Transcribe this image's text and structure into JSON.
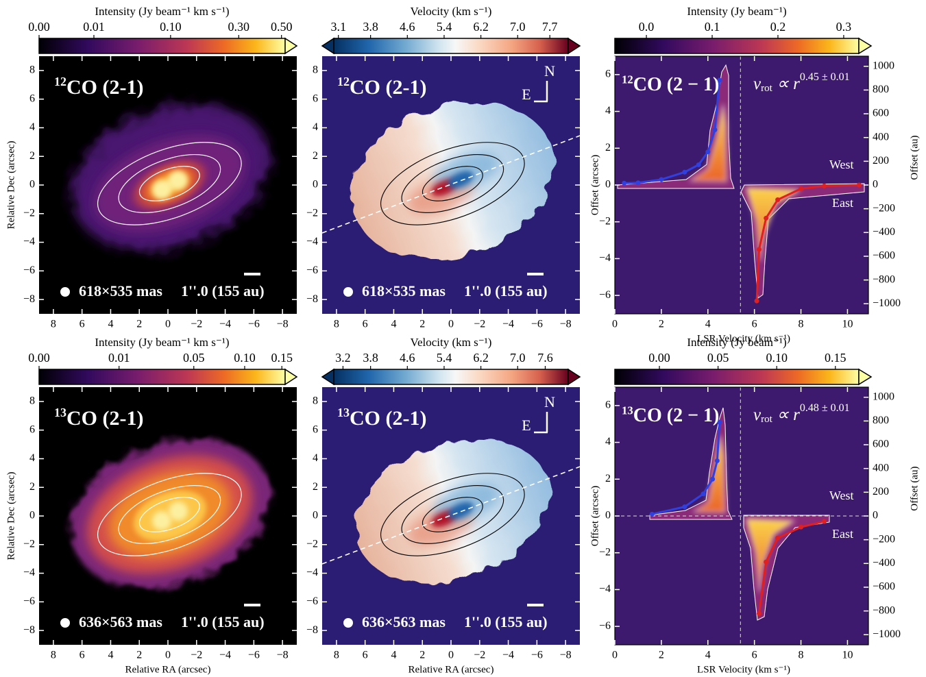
{
  "chart_data": [
    {
      "type": "intensity_map",
      "panel_label": {
        "sup": "12",
        "text": "CO (2-1)"
      },
      "colorbar": {
        "label": "Intensity (Jy beam⁻¹ km s⁻¹)",
        "cmap": "inferno",
        "scale": "power",
        "gamma": 0.38,
        "clim": [
          0,
          0.52
        ],
        "extend": "max",
        "ticks": [
          {
            "value": 0,
            "label": "0.00"
          },
          0.01,
          {
            "value": 0.1,
            "label": "0.10"
          },
          {
            "value": 0.3,
            "label": "0.30"
          },
          {
            "value": 0.5,
            "label": "0.50"
          }
        ]
      },
      "ylabel": "Relative Dec (arcsec)",
      "xlim": [
        9,
        -9
      ],
      "ylim": [
        -9,
        9
      ],
      "xticks": [
        8,
        6,
        4,
        2,
        0,
        {
          "value": -2,
          "label": "−2"
        },
        {
          "value": -4,
          "label": "−4"
        },
        {
          "value": -6,
          "label": "−6"
        },
        {
          "value": -8,
          "label": "−8"
        }
      ],
      "yticks": [
        {
          "value": -8,
          "label": "−8"
        },
        {
          "value": -6,
          "label": "−6"
        },
        {
          "value": -4,
          "label": "−4"
        },
        {
          "value": -2,
          "label": "−2"
        },
        0,
        2,
        4,
        6,
        8
      ],
      "beam": "618×535 mas",
      "scalebar": "1''.0 (155 au)"
    },
    {
      "type": "velocity_map",
      "panel_label": {
        "sup": "12",
        "text": "CO (2-1)"
      },
      "colorbar": {
        "label": "Velocity (km s⁻¹)",
        "cmap": "RdBu_r",
        "scale": "linear",
        "clim": [
          3.0,
          8.1
        ],
        "extend": "both",
        "ticks": [
          3.1,
          3.8,
          4.6,
          5.4,
          6.2,
          {
            "value": 7,
            "label": "7.0"
          },
          7.7
        ]
      },
      "xlim": [
        9,
        -9
      ],
      "ylim": [
        -9,
        9
      ],
      "xticks": [
        8,
        6,
        4,
        2,
        0,
        {
          "value": -2,
          "label": "−2"
        },
        {
          "value": -4,
          "label": "−4"
        },
        {
          "value": -6,
          "label": "−6"
        },
        {
          "value": -8,
          "label": "−8"
        }
      ],
      "yticks": [
        {
          "value": -8,
          "label": "−8"
        },
        {
          "value": -6,
          "label": "−6"
        },
        {
          "value": -4,
          "label": "−4"
        },
        {
          "value": -2,
          "label": "−2"
        },
        0,
        2,
        4,
        6,
        8
      ],
      "compass": {
        "north": "N",
        "east": "E"
      },
      "beam": "618×535 mas",
      "scalebar": "1''.0 (155 au)"
    },
    {
      "type": "pv",
      "panel_label": {
        "sup": "12",
        "text": "CO (2 − 1)"
      },
      "formula": {
        "v": "v",
        "sub": "rot",
        "rel": " ∝ r",
        "sup": "0.45 ± 0.01"
      },
      "colorbar": {
        "label": "Intensity (Jy beam⁻¹)",
        "cmap": "inferno",
        "scale": "linear",
        "clim": [
          -0.048,
          0.323
        ],
        "extend": "max",
        "ticks": [
          {
            "value": 0,
            "label": "0.0"
          },
          0.1,
          0.2,
          0.3
        ]
      },
      "xlabel": "LSR Velocity (km s⁻¹)",
      "ylabel": "Offset (arcsec)",
      "y2label": "Offset (au)",
      "xlim": [
        0,
        10.9
      ],
      "ylim": [
        -7,
        7
      ],
      "y2lim": [
        -1085,
        1085
      ],
      "xticks": [
        0,
        2,
        4,
        6,
        8,
        10
      ],
      "yticks": [
        {
          "value": -6,
          "label": "−6"
        },
        {
          "value": -4,
          "label": "−4"
        },
        {
          "value": -2,
          "label": "−2"
        },
        0,
        2,
        4,
        6
      ],
      "y2ticks": [
        {
          "value": -1000,
          "label": "−1000"
        },
        {
          "value": -800,
          "label": "−800"
        },
        {
          "value": -600,
          "label": "−600"
        },
        {
          "value": -400,
          "label": "−400"
        },
        {
          "value": -200,
          "label": "−200"
        },
        0,
        200,
        400,
        600,
        800,
        1000
      ],
      "vsys": 5.4,
      "west": "West",
      "east": "East",
      "series": [
        {
          "color": "#3040e0",
          "x": [
            0.4,
            1,
            2,
            3,
            3.6,
            4,
            4.3,
            4.5
          ],
          "values": [
            0.1,
            0.12,
            0.3,
            0.7,
            1.1,
            1.8,
            3,
            5.7
          ]
        },
        {
          "color": "#e02020",
          "x": [
            10.5,
            9,
            8,
            7,
            6.5,
            6.2,
            6.1
          ],
          "values": [
            0,
            -0.05,
            -0.2,
            -0.8,
            -1.8,
            -3.5,
            -6.3
          ]
        }
      ]
    },
    {
      "type": "intensity_map",
      "panel_label": {
        "sup": "13",
        "text": "CO (2-1)"
      },
      "colorbar": {
        "label": "Intensity (Jy beam⁻¹ km s⁻¹)",
        "cmap": "inferno",
        "scale": "power",
        "gamma": 0.41,
        "clim": [
          0,
          0.155
        ],
        "extend": "max",
        "ticks": [
          {
            "value": 0,
            "label": "0.00"
          },
          0.01,
          0.05,
          {
            "value": 0.1,
            "label": "0.10"
          },
          0.15
        ]
      },
      "xlabel": "Relative RA (arcsec)",
      "ylabel": "Relative Dec (arcsec)",
      "xlim": [
        9,
        -9
      ],
      "ylim": [
        -9,
        9
      ],
      "xticks": [
        8,
        6,
        4,
        2,
        0,
        {
          "value": -2,
          "label": "−2"
        },
        {
          "value": -4,
          "label": "−4"
        },
        {
          "value": -6,
          "label": "−6"
        },
        {
          "value": -8,
          "label": "−8"
        }
      ],
      "yticks": [
        {
          "value": -8,
          "label": "−8"
        },
        {
          "value": -6,
          "label": "−6"
        },
        {
          "value": -4,
          "label": "−4"
        },
        {
          "value": -2,
          "label": "−2"
        },
        0,
        2,
        4,
        6,
        8
      ],
      "beam": "636×563 mas",
      "scalebar": "1''.0 (155 au)"
    },
    {
      "type": "velocity_map",
      "panel_label": {
        "sup": "13",
        "text": "CO (2-1)"
      },
      "colorbar": {
        "label": "Velocity (km s⁻¹)",
        "cmap": "RdBu_r",
        "scale": "linear",
        "clim": [
          3.0,
          8.1
        ],
        "extend": "both",
        "ticks": [
          3.2,
          3.8,
          4.6,
          5.4,
          6.2,
          {
            "value": 7,
            "label": "7.0"
          },
          7.6
        ]
      },
      "xlabel": "Relative RA (arcsec)",
      "xlim": [
        9,
        -9
      ],
      "ylim": [
        -9,
        9
      ],
      "xticks": [
        8,
        6,
        4,
        2,
        0,
        {
          "value": -2,
          "label": "−2"
        },
        {
          "value": -4,
          "label": "−4"
        },
        {
          "value": -6,
          "label": "−6"
        },
        {
          "value": -8,
          "label": "−8"
        }
      ],
      "yticks": [
        {
          "value": -8,
          "label": "−8"
        },
        {
          "value": -6,
          "label": "−6"
        },
        {
          "value": -4,
          "label": "−4"
        },
        {
          "value": -2,
          "label": "−2"
        },
        0,
        2,
        4,
        6,
        8
      ],
      "compass": {
        "north": "N",
        "east": "E"
      },
      "beam": "636×563 mas",
      "scalebar": "1''.0 (155 au)"
    },
    {
      "type": "pv",
      "panel_label": {
        "sup": "13",
        "text": "CO (2 − 1)"
      },
      "formula": {
        "v": "v",
        "sub": "rot",
        "rel": " ∝ r",
        "sup": "0.48 ± 0.01"
      },
      "colorbar": {
        "label": "Intensity (Jy beam⁻¹)",
        "cmap": "inferno",
        "scale": "linear",
        "clim": [
          -0.038,
          0.17
        ],
        "extend": "max",
        "ticks": [
          {
            "value": 0,
            "label": "0.00"
          },
          0.05,
          {
            "value": 0.1,
            "label": "0.10"
          },
          0.15
        ]
      },
      "xlabel": "LSR Velocity (km s⁻¹)",
      "ylabel": "Offset (arcsec)",
      "y2label": "Offset (au)",
      "xlim": [
        0,
        10.9
      ],
      "ylim": [
        -7,
        7
      ],
      "y2lim": [
        -1085,
        1085
      ],
      "xticks": [
        0,
        2,
        4,
        6,
        8,
        10
      ],
      "yticks": [
        {
          "value": -6,
          "label": "−6"
        },
        {
          "value": -4,
          "label": "−4"
        },
        {
          "value": -2,
          "label": "−2"
        },
        0,
        2,
        4,
        6
      ],
      "y2ticks": [
        {
          "value": -1000,
          "label": "−1000"
        },
        {
          "value": -800,
          "label": "−800"
        },
        {
          "value": -600,
          "label": "−600"
        },
        {
          "value": -400,
          "label": "−400"
        },
        {
          "value": -200,
          "label": "−200"
        },
        0,
        200,
        400,
        600,
        800,
        1000
      ],
      "vsys": 5.4,
      "west": "West",
      "east": "East",
      "series": [
        {
          "color": "#3040e0",
          "x": [
            1.6,
            3,
            3.8,
            4.2,
            4.4,
            4.5
          ],
          "values": [
            0.1,
            0.5,
            1.2,
            2,
            3,
            5.1
          ]
        },
        {
          "color": "#e02020",
          "x": [
            9,
            8,
            7,
            6.5,
            6.2
          ],
          "values": [
            -0.3,
            -0.6,
            -1.2,
            -2.5,
            -5.3
          ]
        }
      ]
    }
  ]
}
